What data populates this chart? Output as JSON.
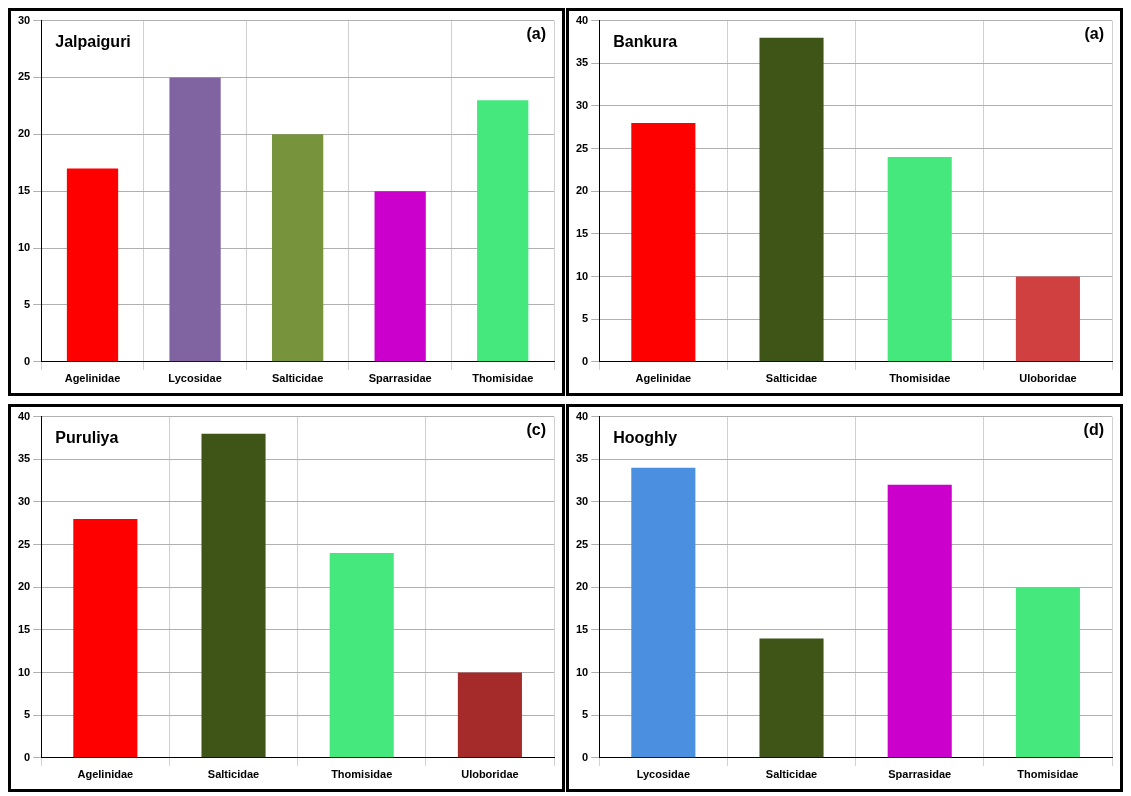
{
  "chart_data": [
    {
      "type": "bar",
      "title": "Jalpaiguri",
      "annotations": [
        "(a)"
      ],
      "categories": [
        "Agelinidae",
        "Lycosidae",
        "Salticidae",
        "Sparrasidae",
        "Thomisidae"
      ],
      "values": [
        17,
        25,
        20,
        15,
        23
      ],
      "colors": [
        "#ff0000",
        "#8064a2",
        "#77933c",
        "#cc00cc",
        "#44e87c"
      ],
      "ylim": [
        0,
        30
      ],
      "yticks": [
        0,
        5,
        10,
        15,
        20,
        25,
        30
      ],
      "grid": true
    },
    {
      "type": "bar",
      "title": "Bankura",
      "annotations": [
        "(a)"
      ],
      "categories": [
        "Agelinidae",
        "Salticidae",
        "Thomisidae",
        "Uloboridae"
      ],
      "values": [
        28,
        38,
        24,
        10
      ],
      "colors": [
        "#ff0000",
        "#3f5417",
        "#44e87c",
        "#d04040"
      ],
      "ylim": [
        0,
        40
      ],
      "yticks": [
        0,
        5,
        10,
        15,
        20,
        25,
        30,
        35,
        40
      ],
      "grid": true
    },
    {
      "type": "bar",
      "title": "Puruliya",
      "annotations": [
        "(c)"
      ],
      "categories": [
        "Agelinidae",
        "Salticidae",
        "Thomisidae",
        "Uloboridae"
      ],
      "values": [
        28,
        38,
        24,
        10
      ],
      "colors": [
        "#ff0000",
        "#3f5417",
        "#44e87c",
        "#a52a2a"
      ],
      "ylim": [
        0,
        40
      ],
      "yticks": [
        0,
        5,
        10,
        15,
        20,
        25,
        30,
        35,
        40
      ],
      "grid": true
    },
    {
      "type": "bar",
      "title": "Hooghly",
      "annotations": [
        "(d)"
      ],
      "categories": [
        "Lycosidae",
        "Salticidae",
        "Sparrasidae",
        "Thomisidae"
      ],
      "values": [
        34,
        14,
        32,
        20
      ],
      "colors": [
        "#4a8fe0",
        "#3f5417",
        "#cc00cc",
        "#44e87c"
      ],
      "ylim": [
        0,
        40
      ],
      "yticks": [
        0,
        5,
        10,
        15,
        20,
        25,
        30,
        35,
        40
      ],
      "grid": true
    }
  ]
}
